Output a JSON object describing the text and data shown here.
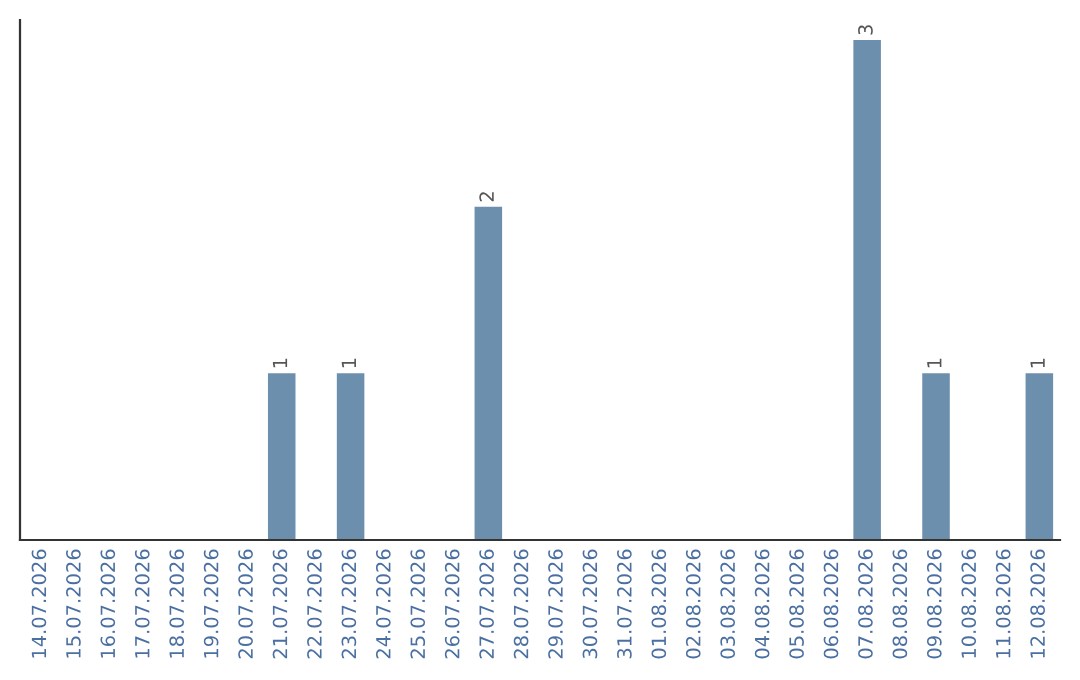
{
  "chart_data": {
    "type": "bar",
    "categories": [
      "14.07.2026",
      "15.07.2026",
      "16.07.2026",
      "17.07.2026",
      "18.07.2026",
      "19.07.2026",
      "20.07.2026",
      "21.07.2026",
      "22.07.2026",
      "23.07.2026",
      "24.07.2026",
      "25.07.2026",
      "26.07.2026",
      "27.07.2026",
      "28.07.2026",
      "29.07.2026",
      "30.07.2026",
      "31.07.2026",
      "01.08.2026",
      "02.08.2026",
      "03.08.2026",
      "04.08.2026",
      "05.08.2026",
      "06.08.2026",
      "07.08.2026",
      "08.08.2026",
      "09.08.2026",
      "10.08.2026",
      "11.08.2026",
      "12.08.2026"
    ],
    "values": [
      0,
      0,
      0,
      0,
      0,
      0,
      0,
      1,
      0,
      1,
      0,
      0,
      0,
      2,
      0,
      0,
      0,
      0,
      0,
      0,
      0,
      0,
      0,
      0,
      3,
      0,
      1,
      0,
      0,
      1
    ],
    "value_labels": [
      null,
      null,
      null,
      null,
      null,
      null,
      null,
      "1",
      null,
      "1",
      null,
      null,
      null,
      "2",
      null,
      null,
      null,
      null,
      null,
      null,
      null,
      null,
      null,
      null,
      "3",
      null,
      "1",
      null,
      null,
      "1"
    ],
    "color": "#6d8fae",
    "grid": false,
    "legend": false
  }
}
